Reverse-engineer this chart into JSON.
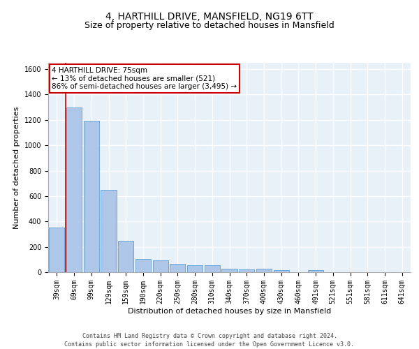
{
  "title1": "4, HARTHILL DRIVE, MANSFIELD, NG19 6TT",
  "title2": "Size of property relative to detached houses in Mansfield",
  "xlabel": "Distribution of detached houses by size in Mansfield",
  "ylabel": "Number of detached properties",
  "footer": "Contains HM Land Registry data © Crown copyright and database right 2024.\nContains public sector information licensed under the Open Government Licence v3.0.",
  "categories": [
    "39sqm",
    "69sqm",
    "99sqm",
    "129sqm",
    "159sqm",
    "190sqm",
    "220sqm",
    "250sqm",
    "280sqm",
    "310sqm",
    "340sqm",
    "370sqm",
    "400sqm",
    "430sqm",
    "460sqm",
    "491sqm",
    "521sqm",
    "551sqm",
    "581sqm",
    "611sqm",
    "641sqm"
  ],
  "values": [
    350,
    1300,
    1195,
    650,
    250,
    105,
    95,
    65,
    55,
    55,
    30,
    20,
    25,
    18,
    0,
    14,
    0,
    0,
    0,
    0,
    0
  ],
  "bar_color": "#aec6e8",
  "bar_edge_color": "#5a9fd4",
  "annotation_text": "4 HARTHILL DRIVE: 75sqm\n← 13% of detached houses are smaller (521)\n86% of semi-detached houses are larger (3,495) →",
  "annotation_box_color": "#ffffff",
  "annotation_box_edge": "#cc0000",
  "vline_color": "#cc0000",
  "vline_x_bin": 1,
  "ylim": [
    0,
    1650
  ],
  "yticks": [
    0,
    200,
    400,
    600,
    800,
    1000,
    1200,
    1400,
    1600
  ],
  "bg_color": "#e8f0f8",
  "grid_color": "#ffffff",
  "title_fontsize": 10,
  "subtitle_fontsize": 9,
  "label_fontsize": 8,
  "tick_fontsize": 7,
  "footer_fontsize": 6
}
